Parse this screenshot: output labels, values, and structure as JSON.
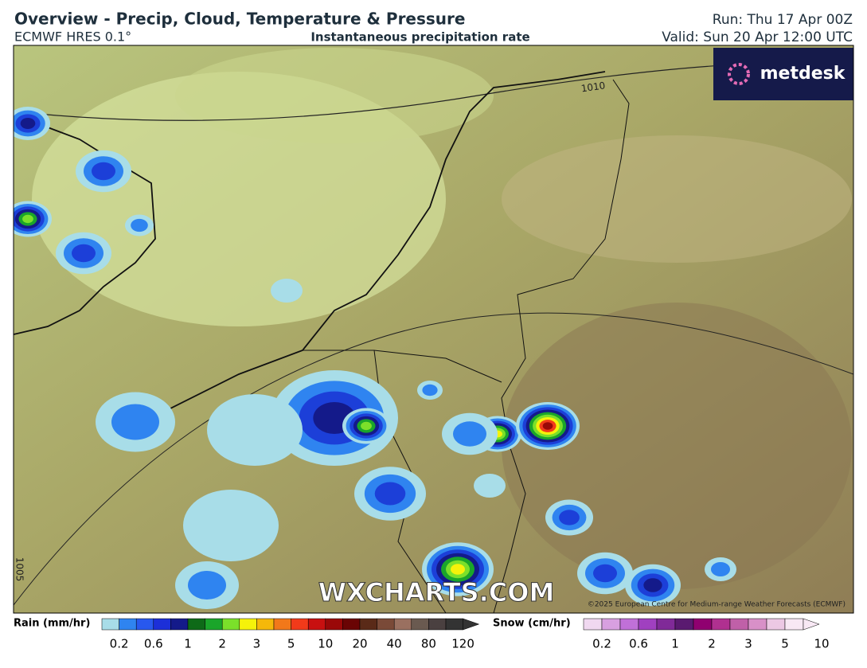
{
  "header": {
    "title": "Overview - Precip, Cloud, Temperature & Pressure",
    "model": "ECMWF HRES 0.1°",
    "product": "Instantaneous precipitation rate",
    "run": "Run: Thu 17 Apr 00Z",
    "valid": "Valid: Sun 20 Apr 12:00 UTC"
  },
  "map": {
    "logo": "metdesk",
    "isobar_labels": [
      "1010",
      "1005"
    ],
    "watermark": "WXCHARTS.COM",
    "copyright": "©2025 European Centre for Medium-range Weather Forecasts (ECMWF)"
  },
  "legend": {
    "rain": {
      "label": "Rain (mm/hr)",
      "ticks": [
        "0.2",
        "0.6",
        "1",
        "2",
        "3",
        "5",
        "10",
        "20",
        "40",
        "80",
        "120"
      ]
    },
    "snow": {
      "label": "Snow (cm/hr)",
      "ticks": [
        "0.2",
        "0.6",
        "1",
        "2",
        "3",
        "5",
        "10"
      ]
    }
  }
}
